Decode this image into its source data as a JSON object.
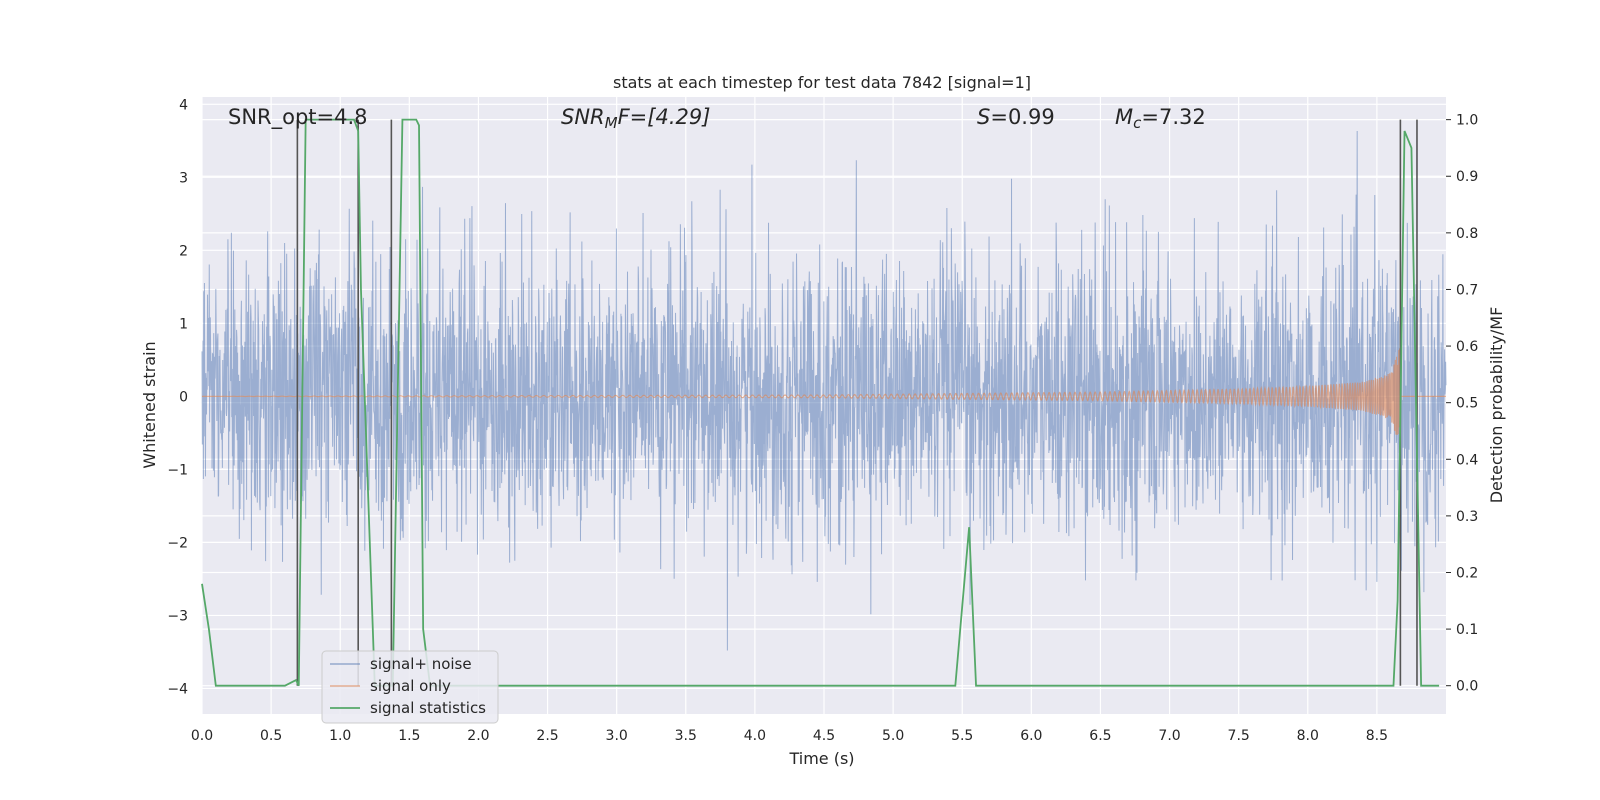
{
  "chart_data": {
    "type": "line",
    "title": "stats at each timestep for test data 7842 [signal=1]",
    "xlabel": "Time (s)",
    "ylabel_left": "Whitened strain",
    "ylabel_right": "Detection probability/MF",
    "xlim": [
      0.0,
      9.0
    ],
    "ylim_left": [
      -4.35,
      4.1
    ],
    "ylim_right": [
      -0.05,
      1.04
    ],
    "x_ticks": [
      "0.0",
      "0.5",
      "1.0",
      "1.5",
      "2.0",
      "2.5",
      "3.0",
      "3.5",
      "4.0",
      "4.5",
      "5.0",
      "5.5",
      "6.0",
      "6.5",
      "7.0",
      "7.5",
      "8.0",
      "8.5"
    ],
    "y_ticks_left": [
      "4",
      "3",
      "2",
      "1",
      "0",
      "−1",
      "−2",
      "−3",
      "−4"
    ],
    "y_ticks_right": [
      "1.0",
      "0.9",
      "0.8",
      "0.7",
      "0.6",
      "0.5",
      "0.4",
      "0.3",
      "0.2",
      "0.1",
      "0.0"
    ],
    "grid": true,
    "legend_position": "lower-left",
    "annotations": {
      "snr_opt": "SNR_opt=4.8",
      "snr_mf_base": "SNR",
      "snr_mf_sub": "M",
      "snr_mf_rest": "F=[4.29]",
      "s_base": "S",
      "s_rest": "=0.99",
      "mc_base": "M",
      "mc_sub": "c",
      "mc_rest": "=7.32"
    },
    "series": [
      {
        "name": "signal+ noise",
        "axis": "left",
        "color": "#4c72b0",
        "description_values": {
          "noise_std": 0.95,
          "peak_range": [
            -4.0,
            3.9
          ]
        }
      },
      {
        "name": "signal only",
        "axis": "left",
        "color": "#dd8452",
        "envelope": {
          "x": [
            0.0,
            4.5,
            5.5,
            6.5,
            7.5,
            8.0,
            8.4,
            8.6,
            8.67
          ],
          "amp": [
            0.0,
            0.02,
            0.04,
            0.06,
            0.1,
            0.14,
            0.2,
            0.32,
            0.7
          ]
        }
      },
      {
        "name": "signal statistics",
        "axis": "right",
        "color": "#55a868",
        "x": [
          0.0,
          0.05,
          0.1,
          0.2,
          0.6,
          0.68,
          0.7,
          0.75,
          0.8,
          1.1,
          1.13,
          1.15,
          1.25,
          1.3,
          1.33,
          1.38,
          1.45,
          1.55,
          1.57,
          1.6,
          1.65,
          1.7,
          5.4,
          5.45,
          5.55,
          5.6,
          5.65,
          8.62,
          8.65,
          8.7,
          8.75,
          8.82,
          8.85,
          8.95
        ],
        "y": [
          0.18,
          0.1,
          0.0,
          0.0,
          0.0,
          0.01,
          0.0,
          1.0,
          1.0,
          1.0,
          0.98,
          0.7,
          0.0,
          0.0,
          0.0,
          0.0,
          1.0,
          1.0,
          0.99,
          0.1,
          0.0,
          0.0,
          0.0,
          0.0,
          0.28,
          0.0,
          0.0,
          0.0,
          0.15,
          0.98,
          0.95,
          0.0,
          0.0,
          0.0
        ]
      }
    ],
    "vertical_lines_x": [
      0.69,
      1.13,
      1.37,
      8.67,
      8.79
    ],
    "vertical_lines_color": "#555555"
  }
}
